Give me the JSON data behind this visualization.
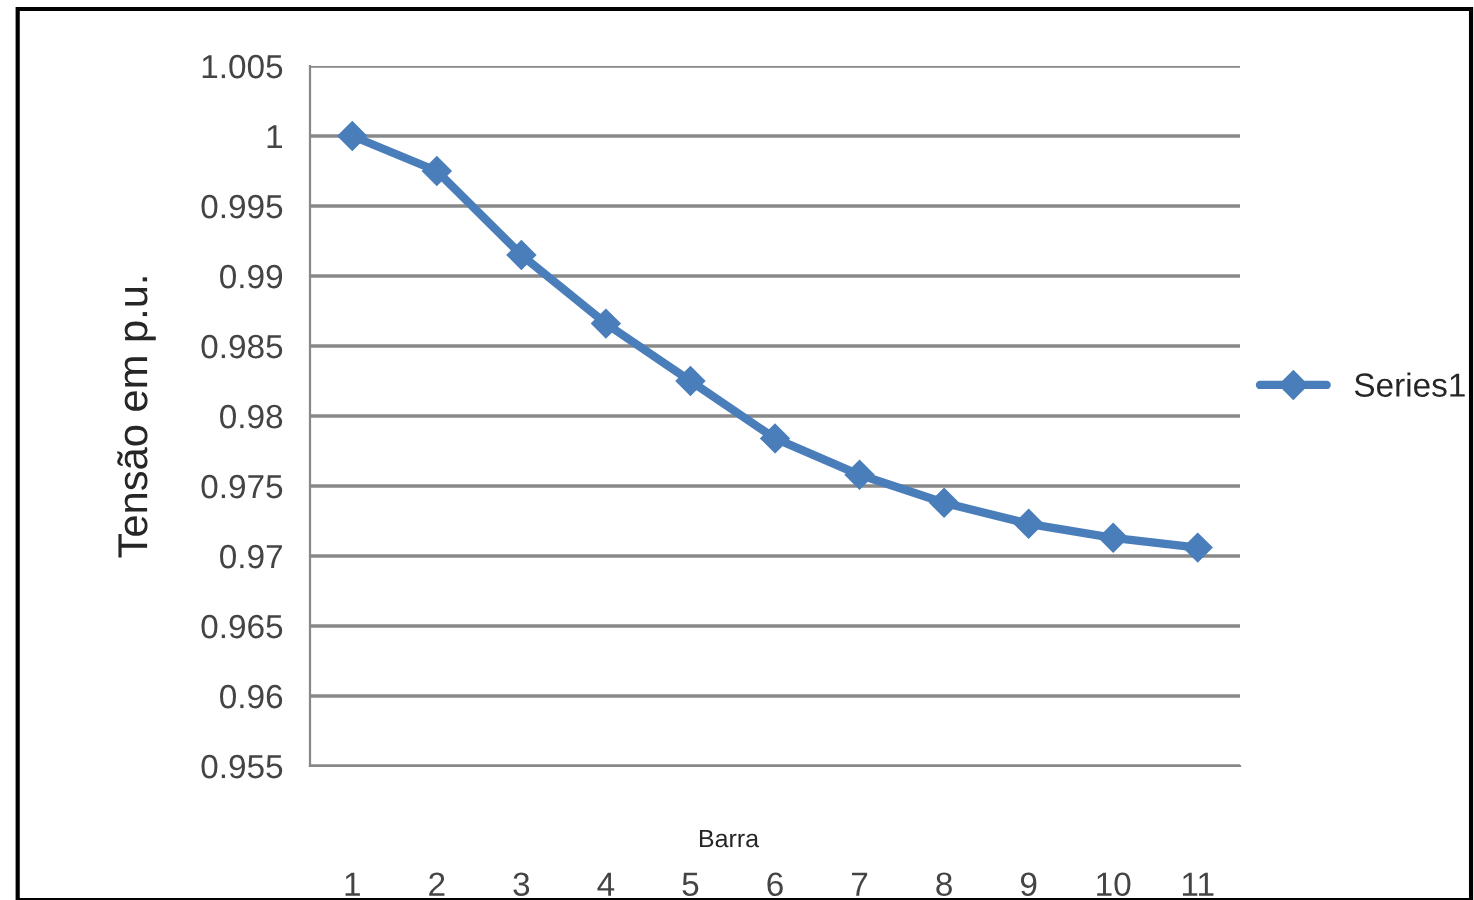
{
  "chart_data": {
    "type": "line",
    "xlabel": "Barra",
    "ylabel": "Tensão em p.u.",
    "categories": [
      "1",
      "2",
      "3",
      "4",
      "5",
      "6",
      "7",
      "8",
      "9",
      "10",
      "11"
    ],
    "series": [
      {
        "name": "Series1",
        "color": "#4a7ebb",
        "values": [
          1.0,
          0.9975,
          0.9915,
          0.9866,
          0.9825,
          0.9784,
          0.9758,
          0.9738,
          0.9723,
          0.9713,
          0.9706
        ]
      }
    ],
    "ylim": [
      0.955,
      1.005
    ],
    "yticks": [
      0.955,
      0.96,
      0.965,
      0.97,
      0.975,
      0.98,
      0.985,
      0.99,
      0.995,
      1,
      1.005
    ],
    "grid": "y",
    "legend": "right",
    "marker": "diamond",
    "line_style": "solid"
  }
}
